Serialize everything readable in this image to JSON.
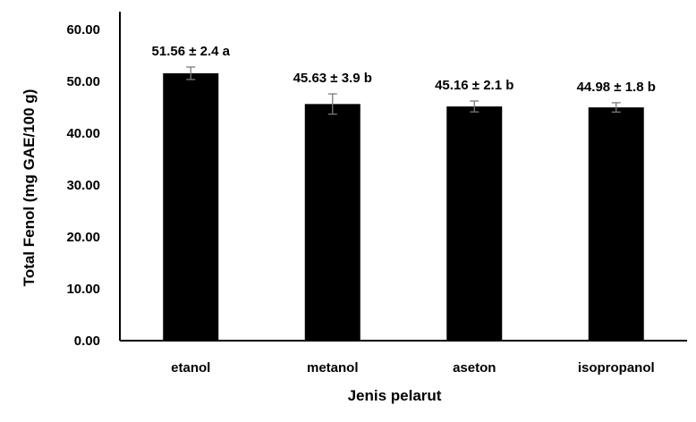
{
  "chart_data": {
    "type": "bar",
    "title": "",
    "xlabel": "Jenis pelarut",
    "ylabel": "Total Fenol (mg GAE/100 g)",
    "ylim": [
      0,
      60
    ],
    "yticks": [
      "0.00",
      "10.00",
      "20.00",
      "30.00",
      "40.00",
      "50.00",
      "60.00"
    ],
    "ytick_values": [
      0,
      10,
      20,
      30,
      40,
      50,
      60
    ],
    "categories": [
      "etanol",
      "metanol",
      "aseton",
      "isopropanol"
    ],
    "values": [
      51.56,
      45.63,
      45.16,
      44.98
    ],
    "errors": [
      2.4,
      3.9,
      2.1,
      1.8
    ],
    "data_labels": [
      "51.56 ± 2.4 a",
      "45.63 ± 3.9 b",
      "45.16 ± 2.1 b",
      "44.98 ± 1.8 b"
    ],
    "grid": false,
    "bar_color": "#000000"
  }
}
